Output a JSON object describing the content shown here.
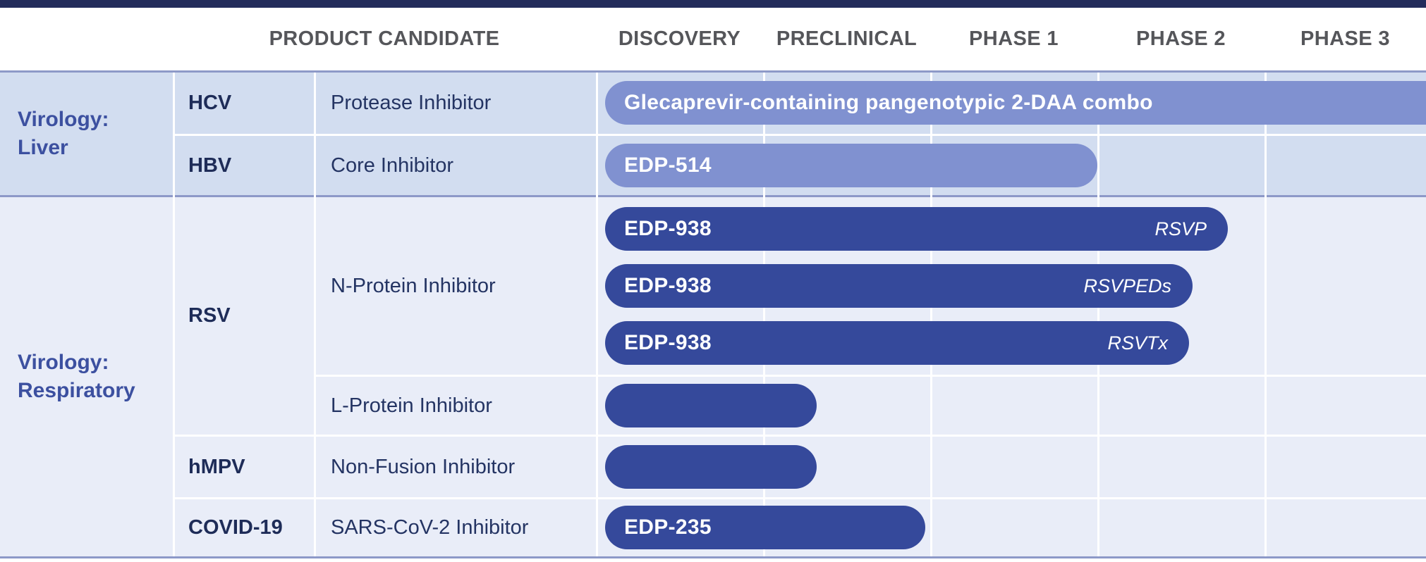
{
  "header": {
    "product_candidate": "PRODUCT CANDIDATE"
  },
  "colors": {
    "accent_navy": "#232c5b",
    "header_text": "#55565a",
    "section_liver_bg": "#d2ddf0",
    "section_resp_bg": "#e9edf8",
    "border_line": "#8d99c8",
    "group_label": "#3c50a0",
    "virus_text": "#1e2c58",
    "cell_text": "#243463",
    "bar_light": "#8091d0",
    "bar_dark": "#35499b",
    "bar_text": "#ffffff"
  },
  "chart_data": {
    "type": "bar",
    "variant": "clinical-pipeline-gantt",
    "stage_columns": [
      "DISCOVERY",
      "PRECLINICAL",
      "PHASE 1",
      "PHASE 2",
      "PHASE 3"
    ],
    "units": "ends_at is measured in stage-column widths: 0 = start of Discovery, 1 = end of Discovery, 5 = end of Phase 3",
    "groups": [
      {
        "title_lines": [
          "Virology:",
          "Liver"
        ],
        "programs": [
          {
            "virus": "HCV",
            "mechanism": "Protease Inhibitor",
            "bars": [
              {
                "label": "Glecaprevir-containing pangenotypic 2-DAA combo",
                "tag": "",
                "style": "light",
                "ends_at": 5.6,
                "clipped_right": true
              }
            ]
          },
          {
            "virus": "HBV",
            "mechanism": "Core Inhibitor",
            "bars": [
              {
                "label": "EDP-514",
                "tag": "",
                "style": "light",
                "ends_at": 3.0
              }
            ]
          }
        ]
      },
      {
        "title_lines": [
          "Virology:",
          "Respiratory"
        ],
        "programs": [
          {
            "virus": "RSV",
            "mechanism": "N-Protein Inhibitor",
            "bars": [
              {
                "label": "EDP-938",
                "tag": "RSVP",
                "style": "dark",
                "ends_at": 3.78
              },
              {
                "label": "EDP-938",
                "tag": "RSVPEDs",
                "style": "dark",
                "ends_at": 3.57
              },
              {
                "label": "EDP-938",
                "tag": "RSVTx",
                "style": "dark",
                "ends_at": 3.55
              }
            ]
          },
          {
            "mechanism": "L-Protein Inhibitor",
            "bars": [
              {
                "label": "",
                "tag": "",
                "style": "dark",
                "ends_at": 1.32
              }
            ]
          },
          {
            "virus": "hMPV",
            "mechanism": "Non-Fusion Inhibitor",
            "bars": [
              {
                "label": "",
                "tag": "",
                "style": "dark",
                "ends_at": 1.32
              }
            ]
          },
          {
            "virus": "COVID-19",
            "mechanism": "SARS-CoV-2 Inhibitor",
            "bars": [
              {
                "label": "EDP-235",
                "tag": "",
                "style": "dark",
                "ends_at": 1.97
              }
            ]
          }
        ]
      }
    ]
  }
}
